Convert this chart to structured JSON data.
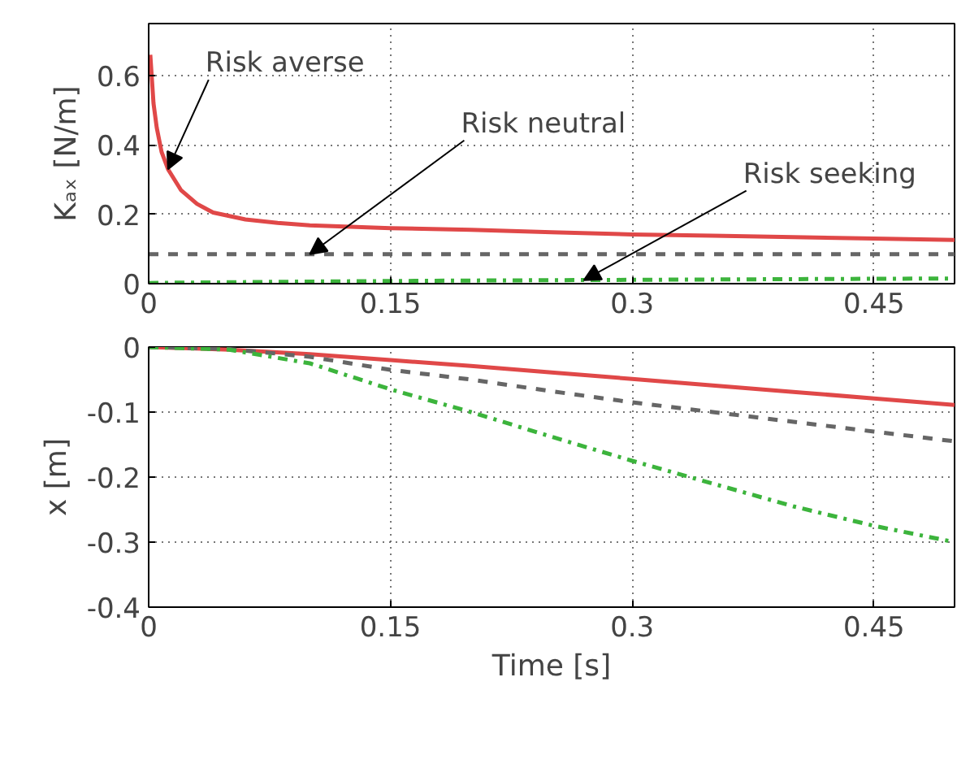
{
  "chart_data": [
    {
      "type": "line",
      "ylabel": "Kₐₓ [N/m]",
      "xlim": [
        0,
        0.5
      ],
      "ylim": [
        0,
        0.75
      ],
      "xticks": [
        0,
        0.15,
        0.3,
        0.45
      ],
      "yticks": [
        0,
        0.2,
        0.4,
        0.6
      ],
      "grid": true,
      "series": [
        {
          "color": "#e04848",
          "line_style": "solid",
          "x": [
            0.001,
            0.003,
            0.005,
            0.008,
            0.012,
            0.02,
            0.03,
            0.04,
            0.06,
            0.08,
            0.1,
            0.15,
            0.2,
            0.25,
            0.3,
            0.35,
            0.4,
            0.45,
            0.5
          ],
          "values": [
            0.66,
            0.52,
            0.45,
            0.38,
            0.33,
            0.27,
            0.23,
            0.205,
            0.185,
            0.175,
            0.168,
            0.16,
            0.155,
            0.148,
            0.142,
            0.138,
            0.134,
            0.13,
            0.126
          ]
        },
        {
          "color": "#666666",
          "line_style": "dashed",
          "x": [
            0,
            0.5
          ],
          "values": [
            0.085,
            0.085
          ]
        },
        {
          "color": "#3cb43c",
          "line_style": "dashdot",
          "x": [
            0,
            0.1,
            0.2,
            0.3,
            0.4,
            0.5
          ],
          "values": [
            0.002,
            0.006,
            0.009,
            0.011,
            0.013,
            0.015
          ]
        }
      ],
      "annotations": [
        {
          "text": "Risk averse",
          "x": 0.012,
          "y": 0.33
        },
        {
          "text": "Risk neutral",
          "x": 0.1,
          "y": 0.085
        },
        {
          "text": "Risk seeking",
          "x": 0.27,
          "y": 0.01
        }
      ]
    },
    {
      "type": "line",
      "xlabel": "Time [s]",
      "ylabel": "x [m]",
      "xlim": [
        0,
        0.5
      ],
      "ylim": [
        -0.4,
        0
      ],
      "xticks": [
        0,
        0.15,
        0.3,
        0.45
      ],
      "yticks": [
        -0.4,
        -0.3,
        -0.2,
        -0.1,
        0
      ],
      "grid": true,
      "x": [
        0,
        0.05,
        0.1,
        0.15,
        0.2,
        0.25,
        0.3,
        0.35,
        0.4,
        0.45,
        0.5
      ],
      "series": [
        {
          "color": "#e04848",
          "line_style": "solid",
          "values": [
            0,
            -0.004,
            -0.011,
            -0.02,
            -0.029,
            -0.039,
            -0.049,
            -0.059,
            -0.069,
            -0.079,
            -0.089
          ]
        },
        {
          "color": "#666666",
          "line_style": "dashed",
          "values": [
            0,
            -0.003,
            -0.015,
            -0.035,
            -0.05,
            -0.068,
            -0.085,
            -0.1,
            -0.115,
            -0.13,
            -0.145
          ]
        },
        {
          "color": "#3cb43c",
          "line_style": "dashdot",
          "values": [
            0,
            -0.004,
            -0.025,
            -0.065,
            -0.1,
            -0.138,
            -0.175,
            -0.21,
            -0.245,
            -0.275,
            -0.3
          ]
        }
      ]
    }
  ]
}
